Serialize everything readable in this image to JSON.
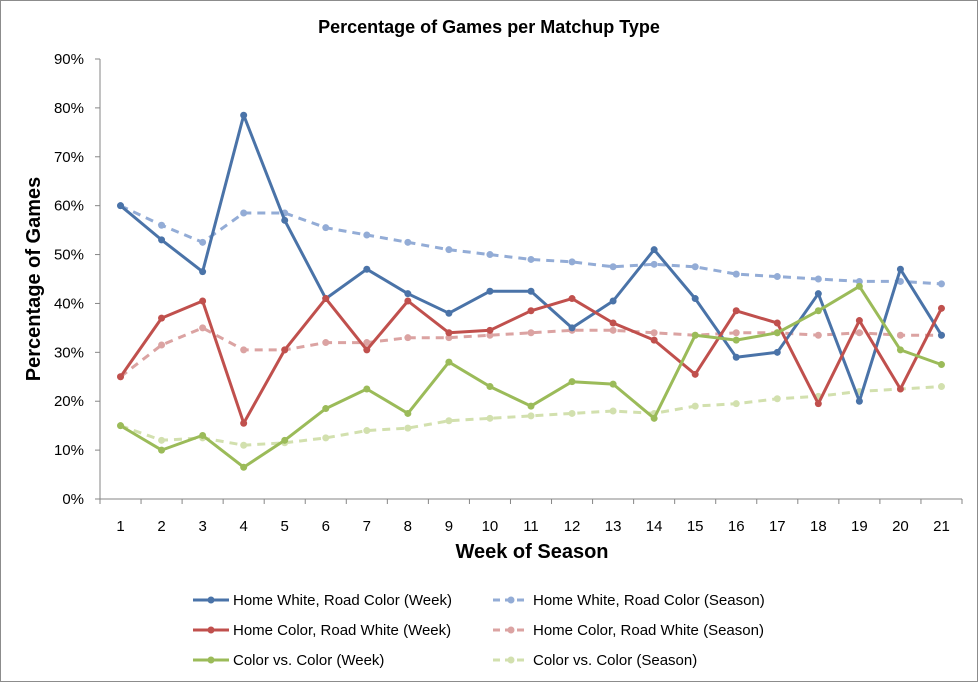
{
  "chart_data": {
    "type": "line",
    "title": "Percentage of Games per Matchup Type",
    "xlabel": "Week of Season",
    "ylabel": "Percentage of Games",
    "x": [
      1,
      2,
      3,
      4,
      5,
      6,
      7,
      8,
      9,
      10,
      11,
      12,
      13,
      14,
      15,
      16,
      17,
      18,
      19,
      20,
      21
    ],
    "x_tick_labels": [
      "1",
      "2",
      "3",
      "4",
      "5",
      "6",
      "7",
      "8",
      "9",
      "10",
      "11",
      "12",
      "13",
      "14",
      "15",
      "16",
      "17",
      "18",
      "19",
      "20",
      "21"
    ],
    "ylim": [
      0,
      90
    ],
    "y_tick_values": [
      0,
      10,
      20,
      30,
      40,
      50,
      60,
      70,
      80,
      90
    ],
    "y_tick_labels": [
      "0%",
      "10%",
      "20%",
      "30%",
      "40%",
      "50%",
      "60%",
      "70%",
      "80%",
      "90%"
    ],
    "grid": false,
    "legend_position": "bottom",
    "series": [
      {
        "name": "Home White, Road Color (Week)",
        "color": "#4a73a8",
        "dashed": false,
        "values": [
          60,
          53,
          46.5,
          78.5,
          57,
          41,
          47,
          42,
          38,
          42.5,
          42.5,
          35,
          40.5,
          51,
          41,
          29,
          30,
          42,
          20,
          47,
          33.5
        ]
      },
      {
        "name": "Home White, Road Color (Season)",
        "color": "#93acd6",
        "dashed": true,
        "values": [
          60,
          56,
          52.5,
          58.5,
          58.5,
          55.5,
          54,
          52.5,
          51,
          50,
          49,
          48.5,
          47.5,
          48,
          47.5,
          46,
          45.5,
          45,
          44.5,
          44.5,
          44
        ]
      },
      {
        "name": "Home Color, Road White (Week)",
        "color": "#c0504d",
        "dashed": false,
        "values": [
          25,
          37,
          40.5,
          15.5,
          30.5,
          41,
          30.5,
          40.5,
          34,
          34.5,
          38.5,
          41,
          36,
          32.5,
          25.5,
          38.5,
          36,
          19.5,
          36.5,
          22.5,
          39
        ]
      },
      {
        "name": "Home Color, Road White (Season)",
        "color": "#dba3a2",
        "dashed": true,
        "values": [
          25,
          31.5,
          35,
          30.5,
          30.5,
          32,
          32,
          33,
          33,
          33.5,
          34,
          34.5,
          34.5,
          34,
          33.5,
          34,
          34,
          33.5,
          34,
          33.5,
          33.5
        ]
      },
      {
        "name": "Color vs. Color (Week)",
        "color": "#9bbb59",
        "dashed": false,
        "values": [
          15,
          10,
          13,
          6.5,
          12,
          18.5,
          22.5,
          17.5,
          28,
          23,
          19,
          24,
          23.5,
          16.5,
          33.5,
          32.5,
          34,
          38.5,
          43.5,
          30.5,
          27.5
        ]
      },
      {
        "name": "Color vs. Color (Season)",
        "color": "#d2e0ae",
        "dashed": true,
        "values": [
          15,
          12,
          12.5,
          11,
          11.5,
          12.5,
          14,
          14.5,
          16,
          16.5,
          17,
          17.5,
          18,
          17.5,
          19,
          19.5,
          20.5,
          21,
          22,
          22.5,
          23
        ]
      }
    ]
  }
}
